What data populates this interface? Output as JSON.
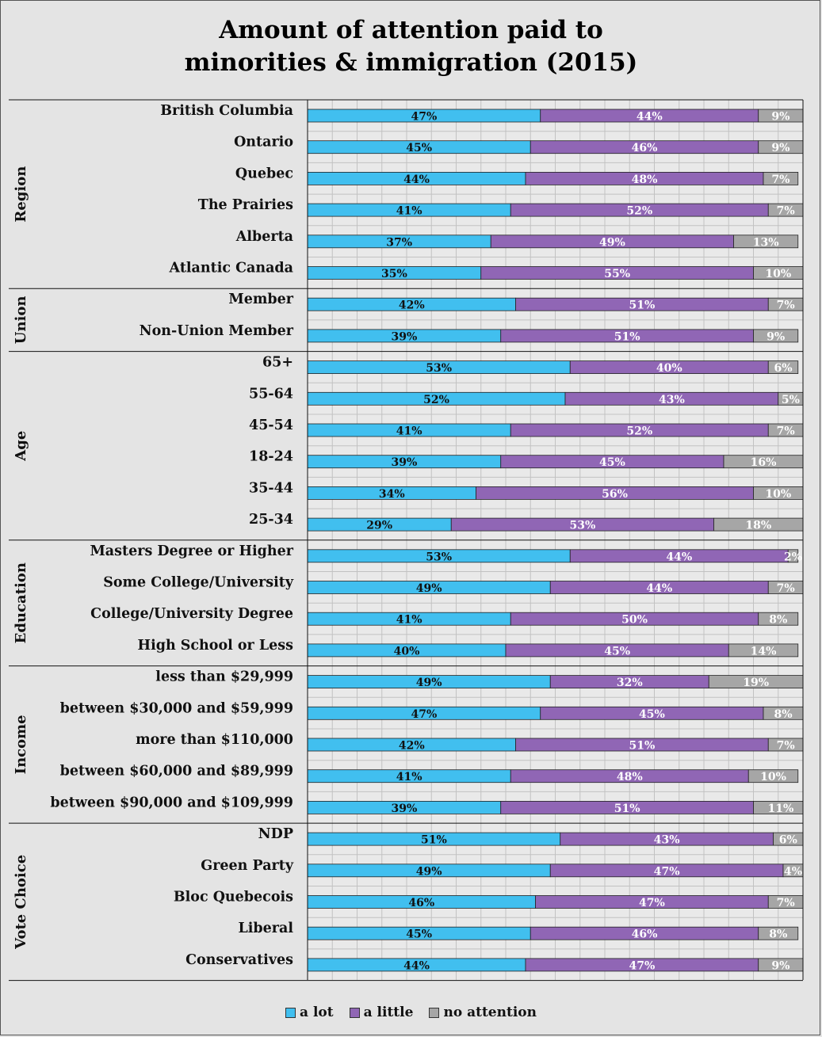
{
  "chart_data": {
    "type": "bar",
    "orientation": "horizontal",
    "stacked": true,
    "title_line1": "Amount of attention paid to",
    "title_line2": "minorities & immigration (2015)",
    "xlabel": "",
    "ylabel": "",
    "xlim": [
      0,
      100
    ],
    "grid": true,
    "legend_position": "bottom",
    "series": [
      {
        "name": "a lot",
        "color": "#41bfef"
      },
      {
        "name": "a little",
        "color": "#9066b5"
      },
      {
        "name": "no attention",
        "color": "#a6a6a6"
      }
    ],
    "groups": [
      {
        "name": "Region",
        "rows": [
          {
            "label": "British Columbia",
            "values": [
              47,
              44,
              9
            ]
          },
          {
            "label": "Ontario",
            "values": [
              45,
              46,
              9
            ]
          },
          {
            "label": "Quebec",
            "values": [
              44,
              48,
              7
            ]
          },
          {
            "label": "The Prairies",
            "values": [
              41,
              52,
              7
            ]
          },
          {
            "label": "Alberta",
            "values": [
              37,
              49,
              13
            ]
          },
          {
            "label": "Atlantic Canada",
            "values": [
              35,
              55,
              10
            ]
          }
        ]
      },
      {
        "name": "Union",
        "rows": [
          {
            "label": "Member",
            "values": [
              42,
              51,
              7
            ]
          },
          {
            "label": "Non-Union Member",
            "values": [
              39,
              51,
              9
            ]
          }
        ]
      },
      {
        "name": "Age",
        "rows": [
          {
            "label": "65+",
            "values": [
              53,
              40,
              6
            ]
          },
          {
            "label": "55-64",
            "values": [
              52,
              43,
              5
            ]
          },
          {
            "label": "45-54",
            "values": [
              41,
              52,
              7
            ]
          },
          {
            "label": "18-24",
            "values": [
              39,
              45,
              16
            ]
          },
          {
            "label": "35-44",
            "values": [
              34,
              56,
              10
            ]
          },
          {
            "label": "25-34",
            "values": [
              29,
              53,
              18
            ]
          }
        ]
      },
      {
        "name": "Education",
        "rows": [
          {
            "label": "Masters Degree or Higher",
            "values": [
              53,
              44,
              2
            ]
          },
          {
            "label": "Some College/University",
            "values": [
              49,
              44,
              7
            ]
          },
          {
            "label": "College/University Degree",
            "values": [
              41,
              50,
              8
            ]
          },
          {
            "label": "High School or Less",
            "values": [
              40,
              45,
              14
            ]
          }
        ]
      },
      {
        "name": "Income",
        "rows": [
          {
            "label": "less than $29,999",
            "values": [
              49,
              32,
              19
            ]
          },
          {
            "label": "between $30,000 and $59,999",
            "values": [
              47,
              45,
              8
            ]
          },
          {
            "label": "more than $110,000",
            "values": [
              42,
              51,
              7
            ]
          },
          {
            "label": "between $60,000 and $89,999",
            "values": [
              41,
              48,
              10
            ]
          },
          {
            "label": "between $90,000 and $109,999",
            "values": [
              39,
              51,
              11
            ]
          }
        ]
      },
      {
        "name": "Vote Choice",
        "rows": [
          {
            "label": "NDP",
            "values": [
              51,
              43,
              6
            ]
          },
          {
            "label": "Green Party",
            "values": [
              49,
              47,
              4
            ]
          },
          {
            "label": "Bloc Quebecois",
            "values": [
              46,
              47,
              7
            ]
          },
          {
            "label": "Liberal",
            "values": [
              45,
              46,
              8
            ]
          },
          {
            "label": "Conservatives",
            "values": [
              44,
              47,
              9
            ]
          }
        ]
      }
    ]
  }
}
